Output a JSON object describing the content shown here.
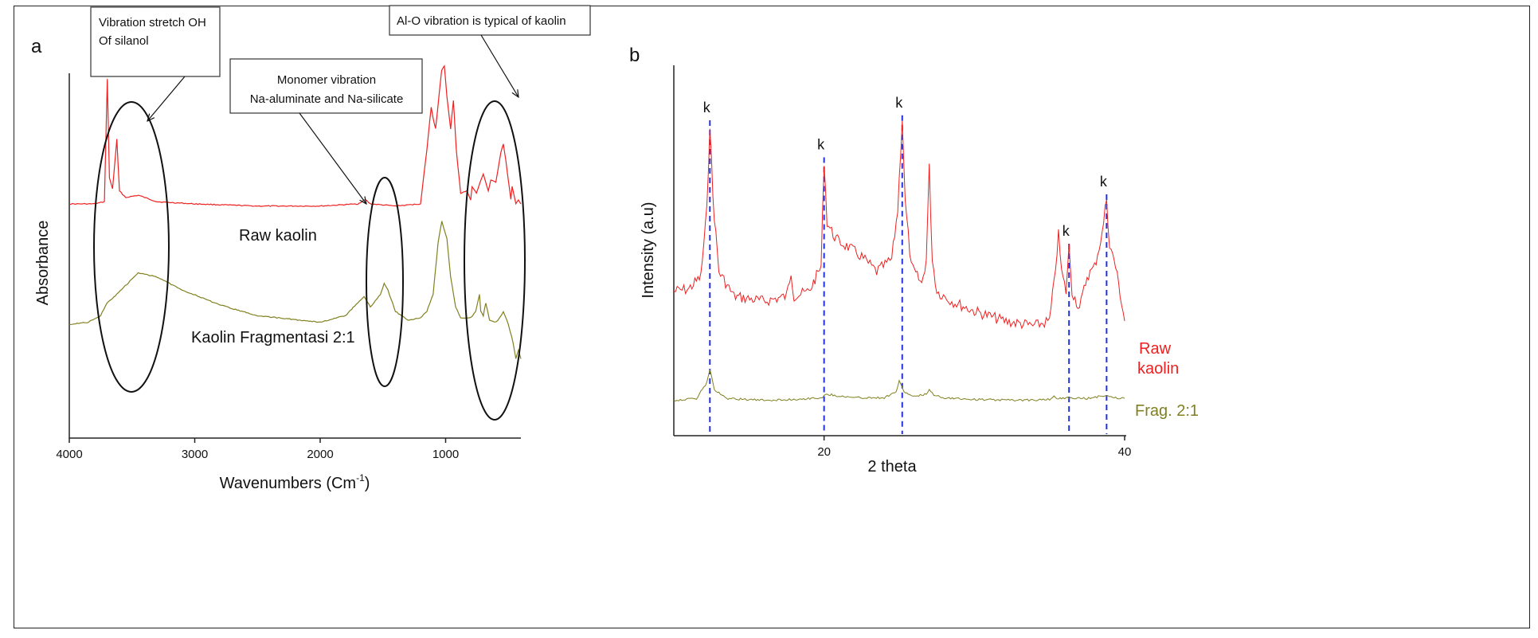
{
  "chart_data": [
    {
      "panel_label": "a",
      "type": "line",
      "xlabel_main": "Wavenumbers (Cm",
      "xlabel_sup": "-1",
      "xlabel_close": ")",
      "ylabel": "Absorbance",
      "xlim": [
        4000,
        400
      ],
      "x_reversed": true,
      "xticks": [
        4000,
        3000,
        2000,
        1000
      ],
      "xtick_labels": [
        "4000",
        "3000",
        "2000",
        "1000"
      ],
      "y_ticks_shown": false,
      "grid": false,
      "series": [
        {
          "name": "Raw kaolin",
          "color": "#ee2020",
          "points": [
            [
              4000,
              0.2
            ],
            [
              3800,
              0.2
            ],
            [
              3720,
              0.21
            ],
            [
              3697,
              0.78
            ],
            [
              3680,
              0.32
            ],
            [
              3655,
              0.27
            ],
            [
              3621,
              0.5
            ],
            [
              3600,
              0.26
            ],
            [
              3550,
              0.23
            ],
            [
              3450,
              0.24
            ],
            [
              3300,
              0.21
            ],
            [
              3000,
              0.2
            ],
            [
              2500,
              0.19
            ],
            [
              2000,
              0.19
            ],
            [
              1700,
              0.2
            ],
            [
              1640,
              0.22
            ],
            [
              1600,
              0.2
            ],
            [
              1400,
              0.19
            ],
            [
              1200,
              0.2
            ],
            [
              1150,
              0.45
            ],
            [
              1115,
              0.65
            ],
            [
              1100,
              0.6
            ],
            [
              1080,
              0.55
            ],
            [
              1050,
              0.72
            ],
            [
              1032,
              0.82
            ],
            [
              1010,
              0.84
            ],
            [
              990,
              0.7
            ],
            [
              960,
              0.55
            ],
            [
              938,
              0.68
            ],
            [
              915,
              0.45
            ],
            [
              880,
              0.25
            ],
            [
              830,
              0.26
            ],
            [
              800,
              0.22
            ],
            [
              790,
              0.28
            ],
            [
              755,
              0.25
            ],
            [
              700,
              0.34
            ],
            [
              660,
              0.26
            ],
            [
              640,
              0.31
            ],
            [
              600,
              0.3
            ],
            [
              560,
              0.44
            ],
            [
              540,
              0.48
            ],
            [
              520,
              0.4
            ],
            [
              480,
              0.22
            ],
            [
              470,
              0.28
            ],
            [
              440,
              0.2
            ],
            [
              420,
              0.22
            ],
            [
              400,
              0.2
            ]
          ]
        },
        {
          "name": "Kaolin Fragmentasi 2:1",
          "color": "#808020",
          "points": [
            [
              4000,
              -0.36
            ],
            [
              3850,
              -0.35
            ],
            [
              3750,
              -0.32
            ],
            [
              3700,
              -0.26
            ],
            [
              3620,
              -0.22
            ],
            [
              3450,
              -0.12
            ],
            [
              3300,
              -0.14
            ],
            [
              3100,
              -0.2
            ],
            [
              2800,
              -0.27
            ],
            [
              2500,
              -0.32
            ],
            [
              2000,
              -0.35
            ],
            [
              1800,
              -0.32
            ],
            [
              1700,
              -0.26
            ],
            [
              1650,
              -0.23
            ],
            [
              1600,
              -0.28
            ],
            [
              1520,
              -0.22
            ],
            [
              1490,
              -0.17
            ],
            [
              1460,
              -0.2
            ],
            [
              1400,
              -0.3
            ],
            [
              1300,
              -0.34
            ],
            [
              1200,
              -0.33
            ],
            [
              1150,
              -0.3
            ],
            [
              1100,
              -0.22
            ],
            [
              1060,
              0.02
            ],
            [
              1030,
              0.12
            ],
            [
              1010,
              0.08
            ],
            [
              990,
              0.04
            ],
            [
              960,
              -0.14
            ],
            [
              920,
              -0.28
            ],
            [
              880,
              -0.33
            ],
            [
              800,
              -0.33
            ],
            [
              760,
              -0.3
            ],
            [
              730,
              -0.22
            ],
            [
              720,
              -0.3
            ],
            [
              700,
              -0.32
            ],
            [
              680,
              -0.26
            ],
            [
              650,
              -0.34
            ],
            [
              600,
              -0.35
            ],
            [
              570,
              -0.33
            ],
            [
              540,
              -0.3
            ],
            [
              500,
              -0.36
            ],
            [
              460,
              -0.45
            ],
            [
              440,
              -0.52
            ],
            [
              420,
              -0.48
            ],
            [
              400,
              -0.52
            ]
          ]
        }
      ],
      "annotations": [
        {
          "lines": [
            "Vibration stretch OH",
            "Of silanol"
          ],
          "target": "ellipse around 3600 cm-1"
        },
        {
          "lines": [
            "Monomer vibration",
            "Na-aluminate and Na-silicate"
          ],
          "target": "ellipse around 1480 cm-1"
        },
        {
          "lines": [
            "Al-O vibration is typical of kaolin"
          ],
          "target": "ellipse around 600 cm-1"
        }
      ]
    },
    {
      "panel_label": "b",
      "type": "line",
      "xlabel": "2 theta",
      "ylabel": "Intensity (a.u)",
      "xlim": [
        10,
        40
      ],
      "xticks": [
        20,
        40
      ],
      "xtick_labels": [
        "20",
        "40"
      ],
      "y_ticks_shown": false,
      "grid": false,
      "reference_lines": {
        "style": "dashed",
        "color": "#2233dd",
        "x": [
          12.4,
          20.0,
          25.2,
          36.3,
          38.8
        ],
        "marker_label": "k"
      },
      "series": [
        {
          "name_lines": [
            "Raw",
            "kaolin"
          ],
          "color": "#ee2020",
          "points": [
            [
              10,
              0.32
            ],
            [
              11.0,
              0.33
            ],
            [
              11.8,
              0.38
            ],
            [
              12.2,
              0.65
            ],
            [
              12.4,
              1.0
            ],
            [
              12.6,
              0.7
            ],
            [
              13.0,
              0.4
            ],
            [
              14,
              0.3
            ],
            [
              16,
              0.28
            ],
            [
              17.5,
              0.3
            ],
            [
              17.8,
              0.4
            ],
            [
              18.0,
              0.3
            ],
            [
              19.0,
              0.32
            ],
            [
              19.8,
              0.42
            ],
            [
              20.0,
              0.85
            ],
            [
              20.2,
              0.6
            ],
            [
              20.6,
              0.55
            ],
            [
              21.0,
              0.52
            ],
            [
              21.6,
              0.5
            ],
            [
              22.5,
              0.46
            ],
            [
              23.5,
              0.4
            ],
            [
              24.5,
              0.45
            ],
            [
              24.9,
              0.65
            ],
            [
              25.2,
              1.02
            ],
            [
              25.4,
              0.68
            ],
            [
              25.8,
              0.42
            ],
            [
              26.5,
              0.35
            ],
            [
              26.8,
              0.45
            ],
            [
              27.0,
              0.82
            ],
            [
              27.2,
              0.45
            ],
            [
              27.5,
              0.32
            ],
            [
              28.5,
              0.28
            ],
            [
              30,
              0.24
            ],
            [
              32,
              0.2
            ],
            [
              34,
              0.18
            ],
            [
              35.0,
              0.2
            ],
            [
              35.3,
              0.35
            ],
            [
              35.6,
              0.55
            ],
            [
              35.8,
              0.4
            ],
            [
              36.1,
              0.32
            ],
            [
              36.3,
              0.5
            ],
            [
              36.5,
              0.32
            ],
            [
              37.0,
              0.25
            ],
            [
              37.5,
              0.38
            ],
            [
              38.0,
              0.42
            ],
            [
              38.5,
              0.55
            ],
            [
              38.8,
              0.7
            ],
            [
              39.0,
              0.5
            ],
            [
              39.3,
              0.45
            ],
            [
              39.6,
              0.35
            ],
            [
              40,
              0.2
            ]
          ]
        },
        {
          "name": "Frag. 2:1",
          "color": "#808020",
          "points": [
            [
              10,
              0.02
            ],
            [
              11.5,
              0.03
            ],
            [
              12.2,
              0.12
            ],
            [
              12.4,
              0.2
            ],
            [
              12.7,
              0.08
            ],
            [
              13.5,
              0.03
            ],
            [
              16,
              0.02
            ],
            [
              18,
              0.025
            ],
            [
              19.8,
              0.035
            ],
            [
              20.2,
              0.055
            ],
            [
              21.0,
              0.045
            ],
            [
              22.0,
              0.035
            ],
            [
              24.0,
              0.035
            ],
            [
              24.8,
              0.07
            ],
            [
              25.0,
              0.13
            ],
            [
              25.3,
              0.07
            ],
            [
              26.0,
              0.04
            ],
            [
              26.8,
              0.055
            ],
            [
              27.0,
              0.085
            ],
            [
              27.3,
              0.05
            ],
            [
              28,
              0.035
            ],
            [
              30,
              0.025
            ],
            [
              33,
              0.02
            ],
            [
              35.0,
              0.025
            ],
            [
              35.3,
              0.04
            ],
            [
              35.6,
              0.03
            ],
            [
              36.3,
              0.035
            ],
            [
              37.5,
              0.03
            ],
            [
              38.8,
              0.05
            ],
            [
              39.2,
              0.035
            ],
            [
              40,
              0.03
            ]
          ]
        }
      ]
    }
  ]
}
